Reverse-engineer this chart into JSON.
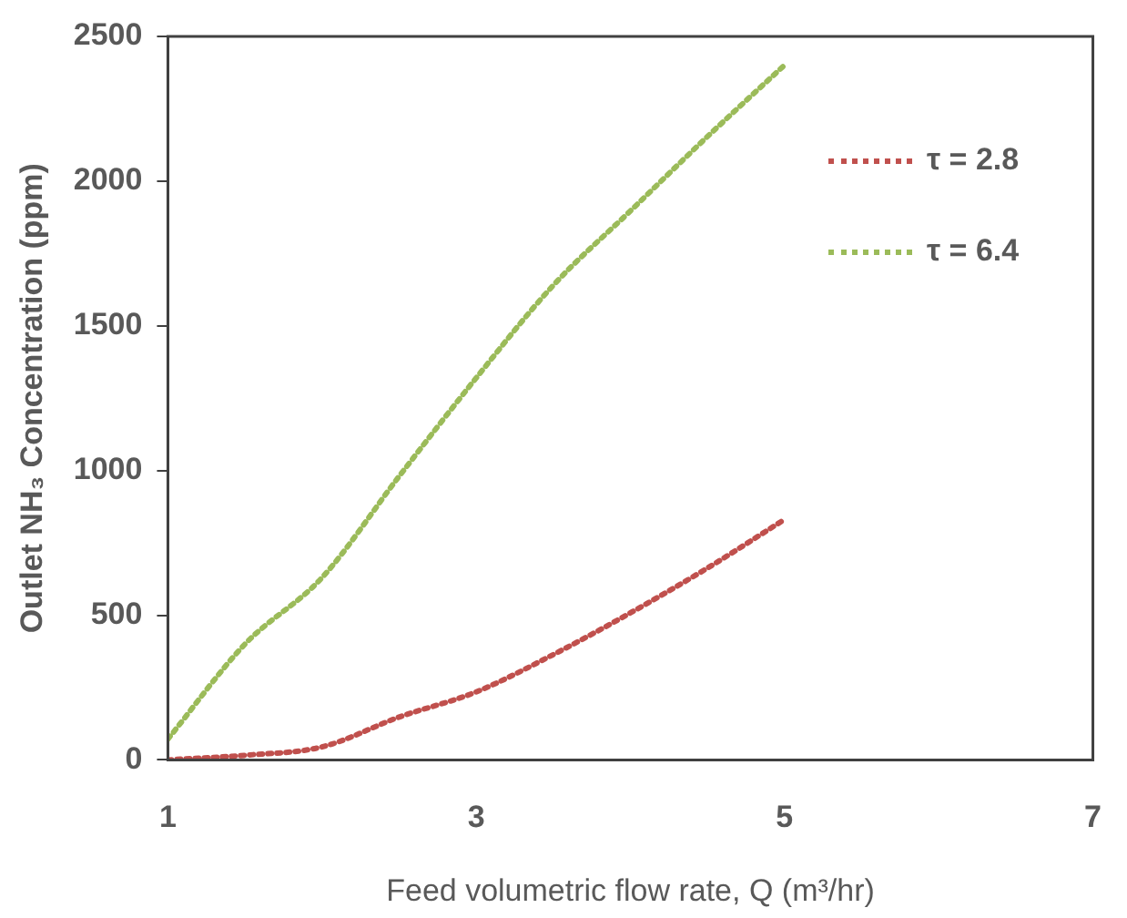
{
  "chart_data": {
    "type": "line",
    "xlabel": "Feed volumetric flow rate, Q (m³/hr)",
    "ylabel": "Outlet NH₃ Concentration (ppm)",
    "x": [
      1,
      1.5,
      2,
      2.5,
      3,
      3.5,
      4,
      4.5,
      5
    ],
    "series": [
      {
        "name": "τ = 2.8",
        "color": "#c0504d",
        "values": [
          0,
          16,
          45,
          148,
          235,
          364,
          508,
          663,
          831
        ]
      },
      {
        "name": "τ = 6.4",
        "color": "#9bbb59",
        "values": [
          72,
          400,
          630,
          980,
          1320,
          1640,
          1897,
          2154,
          2401
        ]
      }
    ],
    "xlim": [
      1,
      7
    ],
    "xticks": [
      1,
      3,
      5,
      7
    ],
    "ylim": [
      0,
      2500
    ],
    "yticks": [
      0,
      500,
      1000,
      1500,
      2000,
      2500
    ],
    "grid": false,
    "legend": "top right",
    "marker": "none",
    "line_style": "dotted"
  }
}
